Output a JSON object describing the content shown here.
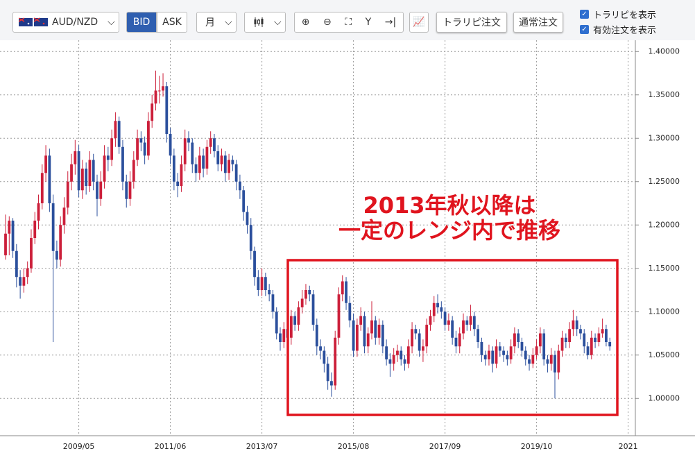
{
  "ui": {
    "pair": "AUD/NZD",
    "bid": "BID",
    "ask": "ASK",
    "period": "月",
    "buttons": [
      "トラリピ注文",
      "通常注文"
    ],
    "checks": [
      "トラリピを表示",
      "有効注文を表示"
    ]
  },
  "chart_data": {
    "type": "candlestick",
    "up_color": "#cc1f3a",
    "down_color": "#2b4f9c",
    "grid": true,
    "annotation": [
      "2013年秋以降は",
      "一定のレンジ内で推移"
    ],
    "xticks": [
      "2009/05",
      "2011/06",
      "2013/07",
      "2015/08",
      "2017/09",
      "2019/10",
      "2021"
    ],
    "ylim": [
      0.957,
      1.413
    ],
    "yticks": [
      {
        "value": 1.0,
        "label": "1.00000"
      },
      {
        "value": 1.05,
        "label": "1.05000"
      },
      {
        "value": 1.1,
        "label": "1.10000"
      },
      {
        "value": 1.15,
        "label": "1.15000"
      },
      {
        "value": 1.2,
        "label": "1.20000"
      },
      {
        "value": 1.25,
        "label": "1.25000"
      },
      {
        "value": 1.3,
        "label": "1.30000"
      },
      {
        "value": 1.35,
        "label": "1.35000"
      },
      {
        "value": 1.4,
        "label": "1.40000"
      }
    ],
    "ohlc": [
      [
        1.165,
        1.212,
        1.16,
        1.19
      ],
      [
        1.19,
        1.21,
        1.165,
        1.205
      ],
      [
        1.205,
        1.208,
        1.162,
        1.17
      ],
      [
        1.17,
        1.178,
        1.128,
        1.14
      ],
      [
        1.14,
        1.148,
        1.115,
        1.13
      ],
      [
        1.13,
        1.15,
        1.122,
        1.14
      ],
      [
        1.14,
        1.158,
        1.132,
        1.15
      ],
      [
        1.15,
        1.195,
        1.145,
        1.185
      ],
      [
        1.185,
        1.215,
        1.178,
        1.205
      ],
      [
        1.205,
        1.235,
        1.195,
        1.225
      ],
      [
        1.225,
        1.27,
        1.218,
        1.26
      ],
      [
        1.26,
        1.292,
        1.25,
        1.28
      ],
      [
        1.28,
        1.288,
        1.215,
        1.225
      ],
      [
        1.225,
        1.235,
        1.065,
        1.17
      ],
      [
        1.17,
        1.182,
        1.15,
        1.16
      ],
      [
        1.16,
        1.21,
        1.152,
        1.2
      ],
      [
        1.2,
        1.232,
        1.19,
        1.22
      ],
      [
        1.22,
        1.262,
        1.212,
        1.25
      ],
      [
        1.25,
        1.282,
        1.24,
        1.27
      ],
      [
        1.27,
        1.298,
        1.258,
        1.285
      ],
      [
        1.285,
        1.292,
        1.232,
        1.24
      ],
      [
        1.24,
        1.275,
        1.23,
        1.265
      ],
      [
        1.265,
        1.272,
        1.235,
        1.245
      ],
      [
        1.245,
        1.285,
        1.238,
        1.275
      ],
      [
        1.275,
        1.282,
        1.24,
        1.25
      ],
      [
        1.25,
        1.258,
        1.21,
        1.23
      ],
      [
        1.23,
        1.262,
        1.222,
        1.25
      ],
      [
        1.25,
        1.292,
        1.242,
        1.28
      ],
      [
        1.28,
        1.29,
        1.262,
        1.275
      ],
      [
        1.275,
        1.31,
        1.268,
        1.3
      ],
      [
        1.3,
        1.33,
        1.29,
        1.32
      ],
      [
        1.32,
        1.325,
        1.282,
        1.29
      ],
      [
        1.29,
        1.298,
        1.24,
        1.25
      ],
      [
        1.25,
        1.258,
        1.22,
        1.23
      ],
      [
        1.23,
        1.262,
        1.222,
        1.25
      ],
      [
        1.25,
        1.285,
        1.242,
        1.275
      ],
      [
        1.275,
        1.31,
        1.268,
        1.3
      ],
      [
        1.3,
        1.308,
        1.285,
        1.295
      ],
      [
        1.295,
        1.302,
        1.27,
        1.28
      ],
      [
        1.28,
        1.33,
        1.275,
        1.32
      ],
      [
        1.32,
        1.35,
        1.312,
        1.34
      ],
      [
        1.34,
        1.378,
        1.332,
        1.355
      ],
      [
        1.355,
        1.372,
        1.34,
        1.355
      ],
      [
        1.355,
        1.375,
        1.348,
        1.36
      ],
      [
        1.36,
        1.365,
        1.295,
        1.305
      ],
      [
        1.305,
        1.312,
        1.27,
        1.28
      ],
      [
        1.28,
        1.288,
        1.24,
        1.25
      ],
      [
        1.25,
        1.26,
        1.232,
        1.245
      ],
      [
        1.245,
        1.28,
        1.238,
        1.27
      ],
      [
        1.27,
        1.31,
        1.262,
        1.3
      ],
      [
        1.3,
        1.308,
        1.285,
        1.295
      ],
      [
        1.295,
        1.3,
        1.26,
        1.27
      ],
      [
        1.27,
        1.278,
        1.25,
        1.26
      ],
      [
        1.26,
        1.29,
        1.252,
        1.28
      ],
      [
        1.28,
        1.288,
        1.255,
        1.265
      ],
      [
        1.265,
        1.298,
        1.258,
        1.29
      ],
      [
        1.29,
        1.308,
        1.282,
        1.3
      ],
      [
        1.3,
        1.305,
        1.278,
        1.285
      ],
      [
        1.285,
        1.292,
        1.262,
        1.27
      ],
      [
        1.27,
        1.288,
        1.262,
        1.28
      ],
      [
        1.28,
        1.285,
        1.25,
        1.26
      ],
      [
        1.26,
        1.282,
        1.252,
        1.275
      ],
      [
        1.275,
        1.28,
        1.262,
        1.27
      ],
      [
        1.27,
        1.275,
        1.24,
        1.25
      ],
      [
        1.25,
        1.258,
        1.23,
        1.24
      ],
      [
        1.24,
        1.245,
        1.205,
        1.215
      ],
      [
        1.215,
        1.222,
        1.19,
        1.2
      ],
      [
        1.2,
        1.208,
        1.16,
        1.17
      ],
      [
        1.17,
        1.175,
        1.13,
        1.14
      ],
      [
        1.14,
        1.148,
        1.118,
        1.125
      ],
      [
        1.125,
        1.15,
        1.118,
        1.14
      ],
      [
        1.14,
        1.145,
        1.118,
        1.125
      ],
      [
        1.125,
        1.132,
        1.112,
        1.12
      ],
      [
        1.12,
        1.125,
        1.092,
        1.1
      ],
      [
        1.1,
        1.105,
        1.068,
        1.075
      ],
      [
        1.075,
        1.082,
        1.055,
        1.065
      ],
      [
        1.065,
        1.088,
        1.058,
        1.08
      ],
      [
        1.08,
        1.085,
        1.062,
        1.07
      ],
      [
        1.07,
        1.102,
        1.062,
        1.095
      ],
      [
        1.095,
        1.1,
        1.078,
        1.085
      ],
      [
        1.085,
        1.112,
        1.078,
        1.105
      ],
      [
        1.105,
        1.125,
        1.098,
        1.115
      ],
      [
        1.115,
        1.132,
        1.108,
        1.125
      ],
      [
        1.125,
        1.13,
        1.112,
        1.12
      ],
      [
        1.12,
        1.125,
        1.078,
        1.085
      ],
      [
        1.085,
        1.092,
        1.05,
        1.06
      ],
      [
        1.06,
        1.068,
        1.045,
        1.055
      ],
      [
        1.055,
        1.06,
        1.03,
        1.04
      ],
      [
        1.04,
        1.048,
        1.01,
        1.02
      ],
      [
        1.02,
        1.03,
        1.002,
        1.015
      ],
      [
        1.015,
        1.078,
        1.01,
        1.07
      ],
      [
        1.07,
        1.128,
        1.062,
        1.12
      ],
      [
        1.12,
        1.142,
        1.112,
        1.135
      ],
      [
        1.135,
        1.14,
        1.102,
        1.11
      ],
      [
        1.11,
        1.118,
        1.082,
        1.09
      ],
      [
        1.09,
        1.098,
        1.048,
        1.055
      ],
      [
        1.055,
        1.092,
        1.048,
        1.085
      ],
      [
        1.085,
        1.105,
        1.078,
        1.095
      ],
      [
        1.095,
        1.1,
        1.052,
        1.06
      ],
      [
        1.06,
        1.082,
        1.052,
        1.075
      ],
      [
        1.075,
        1.112,
        1.068,
        1.09
      ],
      [
        1.09,
        1.095,
        1.062,
        1.07
      ],
      [
        1.07,
        1.092,
        1.062,
        1.085
      ],
      [
        1.085,
        1.09,
        1.052,
        1.06
      ],
      [
        1.06,
        1.068,
        1.038,
        1.045
      ],
      [
        1.045,
        1.052,
        1.025,
        1.04
      ],
      [
        1.04,
        1.058,
        1.032,
        1.05
      ],
      [
        1.05,
        1.062,
        1.042,
        1.055
      ],
      [
        1.055,
        1.06,
        1.038,
        1.045
      ],
      [
        1.045,
        1.05,
        1.032,
        1.04
      ],
      [
        1.04,
        1.068,
        1.035,
        1.06
      ],
      [
        1.06,
        1.088,
        1.052,
        1.08
      ],
      [
        1.08,
        1.085,
        1.068,
        1.075
      ],
      [
        1.075,
        1.08,
        1.048,
        1.055
      ],
      [
        1.055,
        1.068,
        1.042,
        1.06
      ],
      [
        1.06,
        1.092,
        1.052,
        1.085
      ],
      [
        1.085,
        1.102,
        1.078,
        1.095
      ],
      [
        1.095,
        1.118,
        1.088,
        1.11
      ],
      [
        1.11,
        1.12,
        1.098,
        1.105
      ],
      [
        1.105,
        1.112,
        1.092,
        1.1
      ],
      [
        1.1,
        1.105,
        1.078,
        1.085
      ],
      [
        1.085,
        1.098,
        1.078,
        1.09
      ],
      [
        1.09,
        1.095,
        1.062,
        1.07
      ],
      [
        1.07,
        1.078,
        1.052,
        1.06
      ],
      [
        1.06,
        1.082,
        1.052,
        1.075
      ],
      [
        1.075,
        1.098,
        1.068,
        1.09
      ],
      [
        1.09,
        1.095,
        1.078,
        1.085
      ],
      [
        1.085,
        1.108,
        1.078,
        1.095
      ],
      [
        1.095,
        1.1,
        1.072,
        1.08
      ],
      [
        1.08,
        1.085,
        1.058,
        1.065
      ],
      [
        1.065,
        1.07,
        1.042,
        1.05
      ],
      [
        1.05,
        1.055,
        1.038,
        1.045
      ],
      [
        1.045,
        1.062,
        1.038,
        1.055
      ],
      [
        1.055,
        1.06,
        1.03,
        1.04
      ],
      [
        1.04,
        1.068,
        1.035,
        1.06
      ],
      [
        1.06,
        1.065,
        1.048,
        1.055
      ],
      [
        1.055,
        1.06,
        1.042,
        1.05
      ],
      [
        1.05,
        1.055,
        1.038,
        1.045
      ],
      [
        1.045,
        1.068,
        1.04,
        1.06
      ],
      [
        1.06,
        1.082,
        1.052,
        1.075
      ],
      [
        1.075,
        1.08,
        1.058,
        1.065
      ],
      [
        1.065,
        1.07,
        1.048,
        1.055
      ],
      [
        1.055,
        1.06,
        1.038,
        1.045
      ],
      [
        1.045,
        1.05,
        1.032,
        1.04
      ],
      [
        1.04,
        1.058,
        1.035,
        1.05
      ],
      [
        1.05,
        1.068,
        1.045,
        1.06
      ],
      [
        1.06,
        1.082,
        1.052,
        1.075
      ],
      [
        1.075,
        1.08,
        1.038,
        1.045
      ],
      [
        1.045,
        1.05,
        1.03,
        1.04
      ],
      [
        1.04,
        1.058,
        1.032,
        1.05
      ],
      [
        1.05,
        1.055,
        1.0,
        1.03
      ],
      [
        1.03,
        1.062,
        1.022,
        1.055
      ],
      [
        1.055,
        1.078,
        1.048,
        1.07
      ],
      [
        1.07,
        1.075,
        1.058,
        1.065
      ],
      [
        1.065,
        1.088,
        1.058,
        1.08
      ],
      [
        1.08,
        1.102,
        1.072,
        1.09
      ],
      [
        1.09,
        1.095,
        1.072,
        1.08
      ],
      [
        1.08,
        1.085,
        1.068,
        1.075
      ],
      [
        1.075,
        1.08,
        1.052,
        1.06
      ],
      [
        1.06,
        1.065,
        1.045,
        1.05
      ],
      [
        1.05,
        1.078,
        1.045,
        1.07
      ],
      [
        1.07,
        1.075,
        1.058,
        1.065
      ],
      [
        1.065,
        1.082,
        1.06,
        1.075
      ],
      [
        1.075,
        1.092,
        1.07,
        1.08
      ],
      [
        1.08,
        1.085,
        1.06,
        1.065
      ],
      [
        1.065,
        1.07,
        1.055,
        1.06
      ]
    ]
  }
}
